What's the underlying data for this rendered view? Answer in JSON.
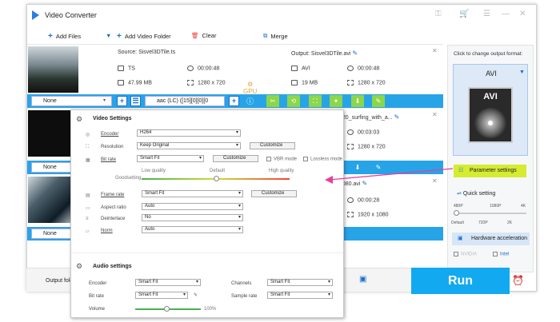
{
  "window": {
    "title": "Video Converter",
    "toolbar": {
      "add_files": "Add Files",
      "add_folder": "Add Video Folder",
      "clear": "Clear",
      "merge": "Merge"
    }
  },
  "rows": [
    {
      "source": "Source: Sisvel3DTile.ts",
      "src_format": "TS",
      "src_duration": "00:00:48",
      "src_size": "47.99 MB",
      "src_res": "1280 x 720",
      "output": "Output: Sisvel3DTile.avi",
      "out_format": "AVI",
      "out_duration": "00:00:48",
      "out_size": "19 MB",
      "out_res": "1280 x 720",
      "subtitle": "None",
      "audio": "aac (LC) ([15][0][0][0"
    },
    {
      "output": "720_surfing_with_a...",
      "out_duration": "00:03:03",
      "out_res": "1280 x 720",
      "subtitle": "None"
    },
    {
      "output": "1080.avi",
      "out_duration": "00:00:28",
      "out_res": "1920 x 1080",
      "subtitle": "None"
    }
  ],
  "gpu_label": "GPU",
  "right_panel": {
    "click_label": "Click to change output format:",
    "format": "AVI",
    "disc_text": "AVI",
    "parameter_settings": "Parameter settings",
    "quick_setting": "Quick setting",
    "ticks_top": [
      "480P",
      "1080P",
      "4K"
    ],
    "ticks_bottom": [
      "Default",
      "720P",
      "2K"
    ],
    "hardware_acceleration": "Hardware acceleration",
    "chip1": "NVIDIA",
    "chip2": "Intel"
  },
  "bottom": {
    "output_folder": "Output fold",
    "run": "Run"
  },
  "dialog": {
    "video_settings": "Video Settings",
    "encoder_label": "Encoder",
    "encoder": "H264",
    "resolution_label": "Resolution",
    "resolution": "Keep Original",
    "customize": "Customize",
    "bitrate_label": "Bit rate",
    "bitrate": "Smart Fit",
    "vbr_mode": "VBR mode",
    "lossless_mode": "Lossless mode",
    "low_quality": "Low quality",
    "default": "Default",
    "high_quality": "High quality",
    "goodsetting": "Goodsetting",
    "framerate_label": "Frame rate",
    "framerate": "Smart Fit",
    "aspect_label": "Aspect ratio",
    "aspect": "Auto",
    "deinterlace_label": "Deinterlace",
    "deinterlace": "No",
    "norm_label": "Norm",
    "norm": "Auto",
    "audio_settings": "Audio settings",
    "a_encoder_label": "Encoder",
    "a_encoder": "Smart Fit",
    "channels_label": "Channels",
    "channels": "Smart Fit",
    "a_bitrate_label": "Bit rate",
    "a_bitrate": "Smart Fit",
    "sample_rate_label": "Sample rate",
    "sample_rate": "Smart Fit",
    "volume_label": "Volume",
    "volume": "100%"
  },
  "colors": {
    "accent": "#27a4e8",
    "run": "#12a9f0",
    "highlight": "#d5ec30",
    "arrow": "#e83e9c",
    "green": "#8cd64a"
  }
}
